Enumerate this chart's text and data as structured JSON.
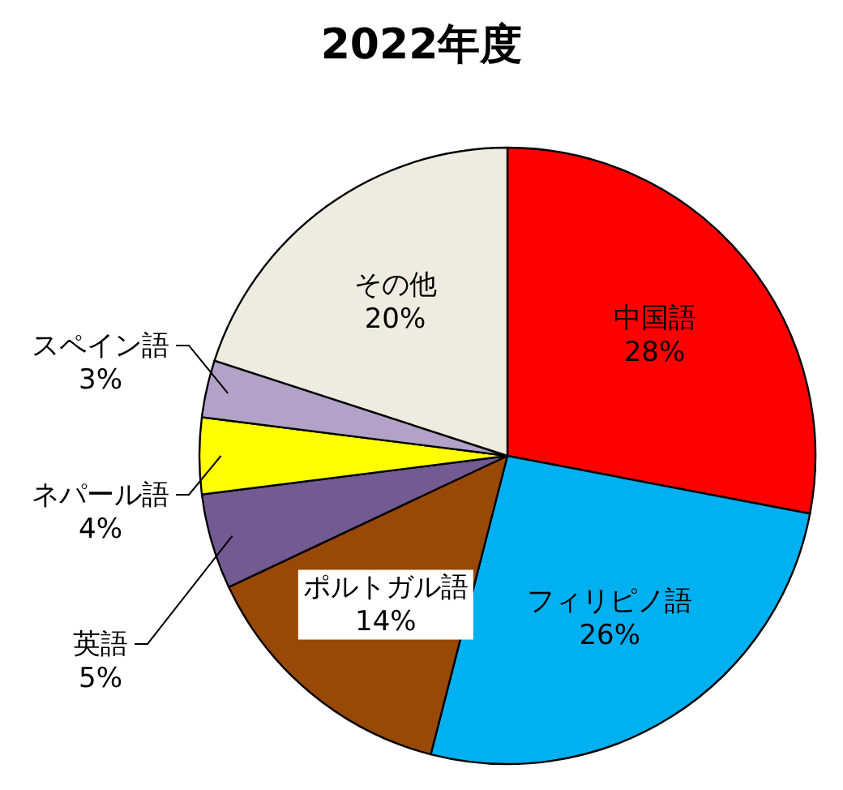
{
  "chart_data": {
    "type": "pie",
    "title": "2022年度",
    "categories": [
      "中国語",
      "フィリピノ語",
      "ポルトガル語",
      "英語",
      "ネパール語",
      "スペイン語",
      "その他"
    ],
    "values": [
      28,
      26,
      14,
      5,
      4,
      3,
      20
    ],
    "colors": [
      "#ff0000",
      "#00b0f0",
      "#984807",
      "#725a92",
      "#ffff00",
      "#b3a2c7",
      "#eeece1"
    ],
    "value_labels": [
      "28%",
      "26%",
      "14%",
      "5%",
      "4%",
      "3%",
      "20%"
    ]
  }
}
